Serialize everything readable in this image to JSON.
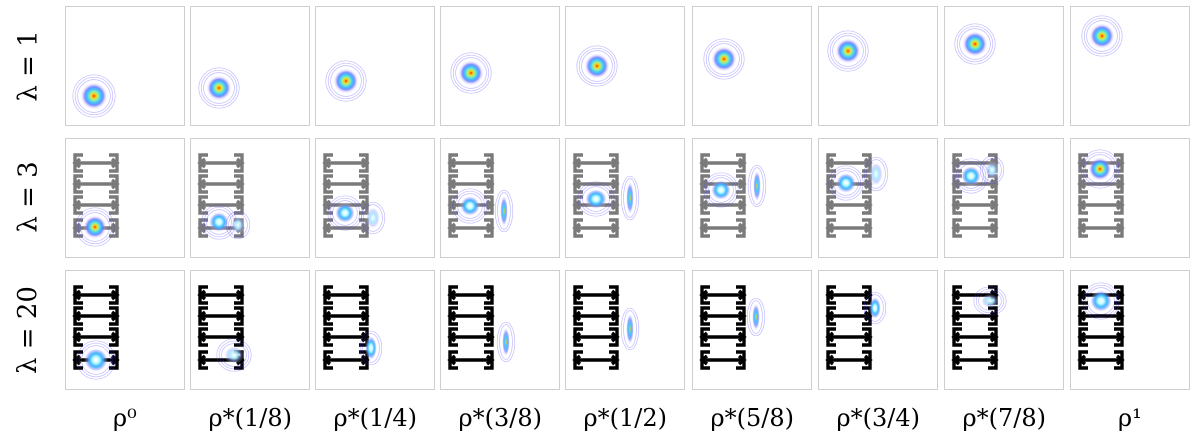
{
  "row_labels": [
    "λ = 1",
    "λ = 3",
    "λ = 20"
  ],
  "col_labels": [
    "ρ⁰",
    "ρ*(1/8)",
    "ρ*(1/4)",
    "ρ*(3/8)",
    "ρ*(1/2)",
    "ρ*(5/8)",
    "ρ*(3/4)",
    "ρ*(7/8)",
    "ρ¹"
  ],
  "obstacle_colors": [
    "none",
    "#7a7a7a",
    "#000000"
  ]
}
